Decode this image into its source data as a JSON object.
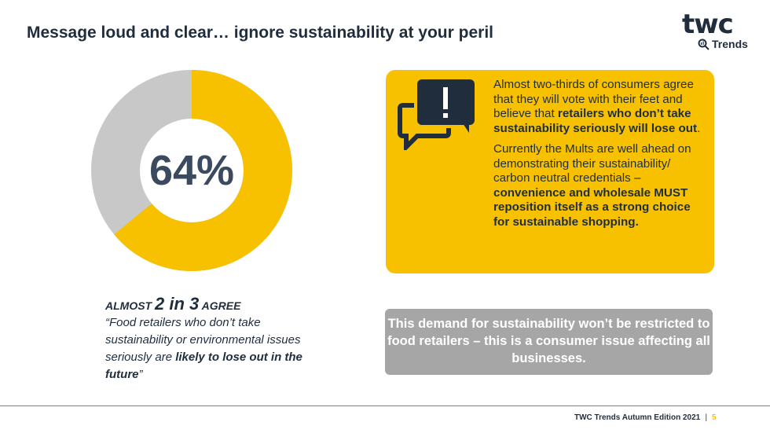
{
  "title": "Message loud and clear… ignore sustainability at your peril",
  "logo": {
    "main": "twc",
    "sub": "Trends"
  },
  "donut": {
    "value": 64,
    "label": "64%",
    "colors": {
      "agree": "#f8c100",
      "other": "#c8c8c8"
    }
  },
  "left": {
    "almost": "ALMOST",
    "ratio": "2 in 3",
    "agree": "AGREE",
    "quote_start": "“Food retailers who don’t take sustainability or environmental issues seriously are ",
    "quote_bold": "likely to lose out in the future",
    "quote_end": "”"
  },
  "callout": {
    "icon": "speech-bubbles-exclamation-icon",
    "p1_start": "Almost two-thirds of consumers agree that they will vote with their feet and believe that ",
    "p1_bold": "retailers who don’t take sustainability seriously will lose out",
    "p1_end": ".",
    "p2_start": "Currently the Mults are well ahead on demonstrating their sustainability/ carbon neutral credentials – ",
    "p2_bold": "convenience and wholesale MUST reposition itself as a strong choice for sustainable shopping."
  },
  "note": "This demand for sustainability won’t be restricted to food retailers – this is a consumer issue affecting all businesses.",
  "footer": {
    "text": "TWC Trends Autumn Edition 2021",
    "sep": "|",
    "page": "5"
  }
}
